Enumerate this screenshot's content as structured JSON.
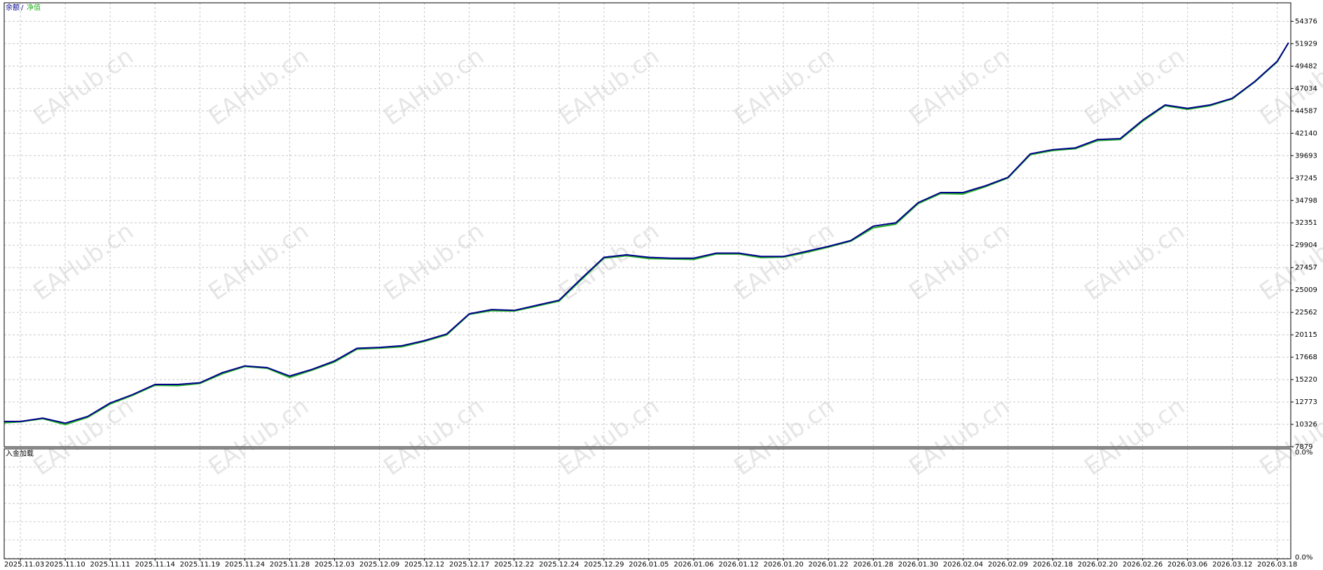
{
  "chart_data": [
    {
      "type": "line",
      "legend_separator": "/",
      "watermark": "EAHub.cn",
      "x": [
        -0.36,
        0,
        0.5,
        1,
        1.5,
        2,
        2.5,
        3,
        3.5,
        4,
        4.5,
        5,
        5.5,
        6,
        6.5,
        7,
        7.5,
        8,
        8.5,
        9,
        9.5,
        10,
        10.5,
        11,
        11.5,
        12,
        12.5,
        13,
        13.5,
        14,
        14.5,
        15,
        15.5,
        16,
        16.5,
        17,
        17.5,
        18,
        18.5,
        19,
        19.5,
        20,
        20.5,
        21,
        21.5,
        22,
        22.5,
        23,
        23.5,
        24,
        24.5,
        25,
        25.5,
        26,
        26.5,
        27,
        27.5,
        28,
        28.25
      ],
      "series": [
        {
          "name": "余额",
          "color": "#00008b",
          "values": [
            10639,
            10640,
            11007,
            10455,
            11191,
            12663,
            13583,
            14687,
            14687,
            14871,
            15975,
            16711,
            16527,
            15607,
            16343,
            17263,
            18643,
            18735,
            18919,
            19471,
            20207,
            22415,
            22875,
            22783,
            23335,
            23887,
            26279,
            28579,
            28855,
            28579,
            28487,
            28487,
            29039,
            29039,
            28671,
            28671,
            29223,
            29775,
            30419,
            31983,
            32351,
            34559,
            35663,
            35663,
            36399,
            37319,
            39895,
            40355,
            40539,
            41459,
            41551,
            43575,
            45231,
            44863,
            45231,
            45967,
            47807,
            50015,
            52039
          ]
        },
        {
          "name": "净值",
          "color": "#22b022",
          "values": [
            10500,
            10600,
            10950,
            10300,
            11100,
            12550,
            13500,
            14600,
            14550,
            14800,
            15850,
            16650,
            16450,
            15450,
            16250,
            17150,
            18550,
            18650,
            18800,
            19400,
            20100,
            22350,
            22750,
            22700,
            23250,
            23800,
            26150,
            28500,
            28750,
            28450,
            28400,
            28350,
            28950,
            28950,
            28550,
            28600,
            29100,
            29700,
            30350,
            31800,
            32200,
            34450,
            35550,
            35500,
            36300,
            37250,
            39800,
            40250,
            40450,
            41350,
            41450,
            43450,
            45150,
            44750,
            45150,
            45900,
            47750,
            49950,
            52039
          ]
        }
      ],
      "xlim": [
        -0.36,
        28.3
      ],
      "xticks": [
        {
          "value": 0,
          "label": "2025.11.03"
        },
        {
          "value": 1,
          "label": "2025.11.10"
        },
        {
          "value": 2,
          "label": "2025.11.11"
        },
        {
          "value": 3,
          "label": "2025.11.14"
        },
        {
          "value": 4,
          "label": "2025.11.19"
        },
        {
          "value": 5,
          "label": "2025.11.24"
        },
        {
          "value": 6,
          "label": "2025.11.28"
        },
        {
          "value": 7,
          "label": "2025.12.03"
        },
        {
          "value": 8,
          "label": "2025.12.09"
        },
        {
          "value": 9,
          "label": "2025.12.12"
        },
        {
          "value": 10,
          "label": "2025.12.17"
        },
        {
          "value": 11,
          "label": "2025.12.22"
        },
        {
          "value": 12,
          "label": "2025.12.24"
        },
        {
          "value": 13,
          "label": "2025.12.29"
        },
        {
          "value": 14,
          "label": "2026.01.05"
        },
        {
          "value": 15,
          "label": "2026.01.06"
        },
        {
          "value": 16,
          "label": "2026.01.12"
        },
        {
          "value": 17,
          "label": "2026.01.20"
        },
        {
          "value": 18,
          "label": "2026.01.22"
        },
        {
          "value": 19,
          "label": "2026.01.28"
        },
        {
          "value": 20,
          "label": "2026.01.30"
        },
        {
          "value": 21,
          "label": "2026.02.04"
        },
        {
          "value": 22,
          "label": "2026.02.09"
        },
        {
          "value": 23,
          "label": "2026.02.18"
        },
        {
          "value": 24,
          "label": "2026.02.20"
        },
        {
          "value": 25,
          "label": "2026.02.26"
        },
        {
          "value": 26,
          "label": "2026.03.06"
        },
        {
          "value": 27,
          "label": "2026.03.12"
        },
        {
          "value": 28,
          "label": "2026.03.18"
        }
      ],
      "ylim": [
        7879,
        56400
      ],
      "yticks": [
        7879,
        10326,
        12773,
        15220,
        17668,
        20115,
        22562,
        25009,
        27457,
        29904,
        32351,
        34798,
        37245,
        39693,
        42140,
        44587,
        47034,
        49482,
        51929,
        54376
      ],
      "grid": true
    },
    {
      "type": "bar",
      "title": "入金加载",
      "yticks": [
        {
          "value": 0,
          "label": "0.0%"
        },
        {
          "value": 0,
          "label": "0.0%"
        }
      ]
    }
  ]
}
